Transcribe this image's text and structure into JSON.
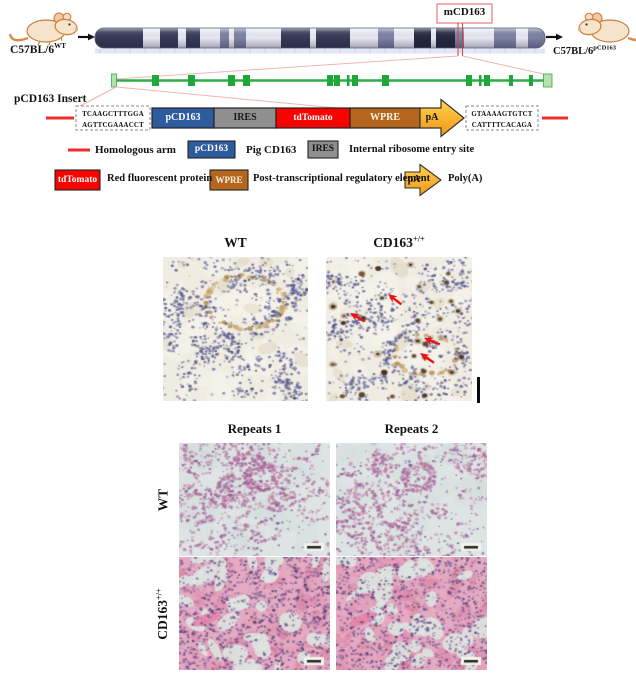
{
  "diagram": {
    "left_mouse": {
      "base": "C57BL/6",
      "sup": "WT"
    },
    "right_mouse": {
      "base": "C57BL/6",
      "sup": "pCD163"
    },
    "locus_tag": "mCD163",
    "insert_title": "pCD163 Insert",
    "left_arm_seq": [
      "TCAAGCTTTGGA",
      "AGTTCGAAACCT"
    ],
    "right_arm_seq": [
      "GTAAAAGTGTCT",
      "CATTTTCACAGA"
    ],
    "cassette": {
      "pcd163": "pCD163",
      "ires": "IRES",
      "tdtomato": "tdTomato",
      "wpre": "WPRE",
      "pa": "pA"
    }
  },
  "legend": {
    "homologous_arm": "Homologous arm",
    "pcd163_key": "pCD163",
    "pcd163_desc": "Pig CD163",
    "ires_key": "IRES",
    "ires_desc": "Internal ribosome entry site",
    "tdtomato_key": "tdTomato",
    "tdtomato_desc": "Red fluorescent protein",
    "wpre_key": "WPRE",
    "wpre_desc": "Post-transcriptional regulatory element",
    "pa_key": "pA",
    "pa_desc": "Poly(A)"
  },
  "ihc_panel": {
    "col1": {
      "base": "WT"
    },
    "col2": {
      "base": "CD163",
      "sup": "+/+"
    }
  },
  "he_panel": {
    "col1": "Repeats 1",
    "col2": "Repeats 2",
    "row1": {
      "base": "WT"
    },
    "row2": {
      "base": "CD163",
      "sup": "+/+"
    }
  },
  "colors": {
    "pcd163_blue": "#2d5b9e",
    "ires_gray": "#8f8f8f",
    "tdtomato_red": "#f80400",
    "wpre_brown": "#b4661f",
    "pa_yellow": "#f5a81c",
    "homology_red": "#ee2c2c",
    "gene_green": "#2fae45",
    "callout_pink": "#ef9b9b",
    "arrow_red": "#ee1111"
  }
}
